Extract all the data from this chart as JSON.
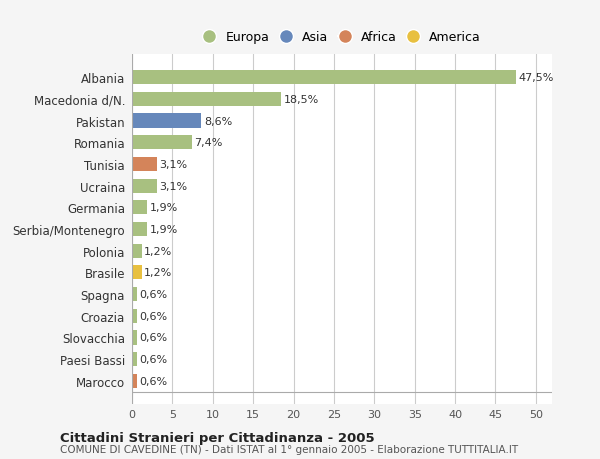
{
  "categories": [
    "Albania",
    "Macedonia d/N.",
    "Pakistan",
    "Romania",
    "Tunisia",
    "Ucraina",
    "Germania",
    "Serbia/Montenegro",
    "Polonia",
    "Brasile",
    "Spagna",
    "Croazia",
    "Slovacchia",
    "Paesi Bassi",
    "Marocco"
  ],
  "values": [
    47.5,
    18.5,
    8.6,
    7.4,
    3.1,
    3.1,
    1.9,
    1.9,
    1.2,
    1.2,
    0.6,
    0.6,
    0.6,
    0.6,
    0.6
  ],
  "labels": [
    "47,5%",
    "18,5%",
    "8,6%",
    "7,4%",
    "3,1%",
    "3,1%",
    "1,9%",
    "1,9%",
    "1,2%",
    "1,2%",
    "0,6%",
    "0,6%",
    "0,6%",
    "0,6%",
    "0,6%"
  ],
  "colors": [
    "#a8c080",
    "#a8c080",
    "#6688bb",
    "#a8c080",
    "#d4845a",
    "#a8c080",
    "#a8c080",
    "#a8c080",
    "#a8c080",
    "#e8c040",
    "#a8c080",
    "#a8c080",
    "#a8c080",
    "#a8c080",
    "#d4845a"
  ],
  "legend_labels": [
    "Europa",
    "Asia",
    "Africa",
    "America"
  ],
  "legend_colors": [
    "#a8c080",
    "#6688bb",
    "#d4845a",
    "#e8c040"
  ],
  "title_main": "Cittadini Stranieri per Cittadinanza - 2005",
  "title_sub": "COMUNE DI CAVEDINE (TN) - Dati ISTAT al 1° gennaio 2005 - Elaborazione TUTTITALIA.IT",
  "xlim": [
    0,
    52
  ],
  "xticks": [
    0,
    5,
    10,
    15,
    20,
    25,
    30,
    35,
    40,
    45,
    50
  ],
  "background_color": "#f5f5f5",
  "bar_bg_color": "#ffffff",
  "grid_color": "#cccccc"
}
